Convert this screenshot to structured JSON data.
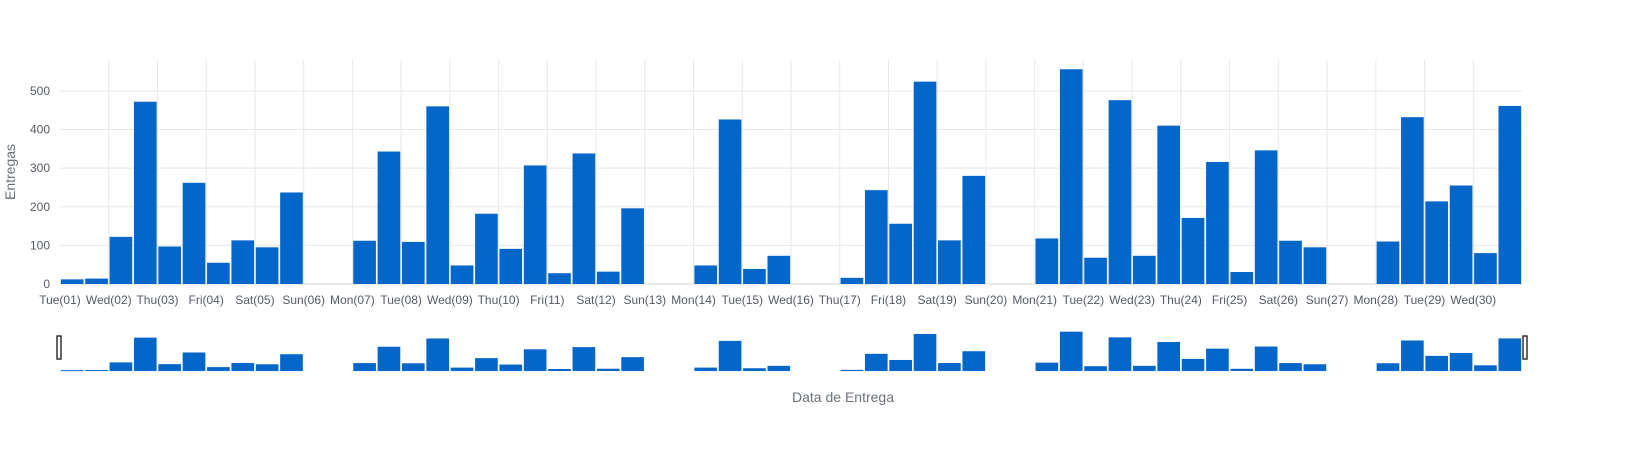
{
  "chart_data": {
    "type": "bar",
    "xlabel": "Data de Entrega",
    "ylabel": "Entregas",
    "ylim": [
      0,
      580
    ],
    "yticks": [
      0,
      100,
      200,
      300,
      400,
      500
    ],
    "grid": true,
    "bar_color": "#0366c8",
    "has_range_slider": true,
    "categories": [
      "Tue(01)",
      "",
      "Wed(02)",
      "",
      "Thu(03)",
      "",
      "Fri(04)",
      "",
      "Sat(05)",
      "",
      "Sun(06)",
      "",
      "Mon(07)",
      "",
      "Tue(08)",
      "",
      "Wed(09)",
      "",
      "Thu(10)",
      "",
      "Fri(11)",
      "",
      "Sat(12)",
      "",
      "Sun(13)",
      "",
      "Mon(14)",
      "",
      "Tue(15)",
      "",
      "Wed(16)",
      "",
      "Thu(17)",
      "",
      "Fri(18)",
      "",
      "Sat(19)",
      "",
      "Sun(20)",
      "",
      "Mon(21)",
      "",
      "Tue(22)",
      "",
      "Wed(23)",
      "",
      "Thu(24)",
      "",
      "Fri(25)",
      "",
      "Sat(26)",
      "",
      "Sun(27)",
      "",
      "Mon(28)",
      "",
      "Tue(29)",
      "",
      "Wed(30)",
      ""
    ],
    "values": [
      12,
      14,
      122,
      472,
      97,
      262,
      55,
      113,
      95,
      237,
      0,
      0,
      112,
      343,
      109,
      460,
      48,
      182,
      91,
      307,
      28,
      338,
      32,
      196,
      0,
      0,
      48,
      426,
      39,
      73,
      0,
      0,
      16,
      243,
      156,
      524,
      113,
      280,
      0,
      0,
      118,
      556,
      68,
      476,
      73,
      410,
      171,
      316,
      31,
      346,
      112,
      95,
      0,
      0,
      110,
      432,
      214,
      255,
      80,
      461
    ]
  }
}
